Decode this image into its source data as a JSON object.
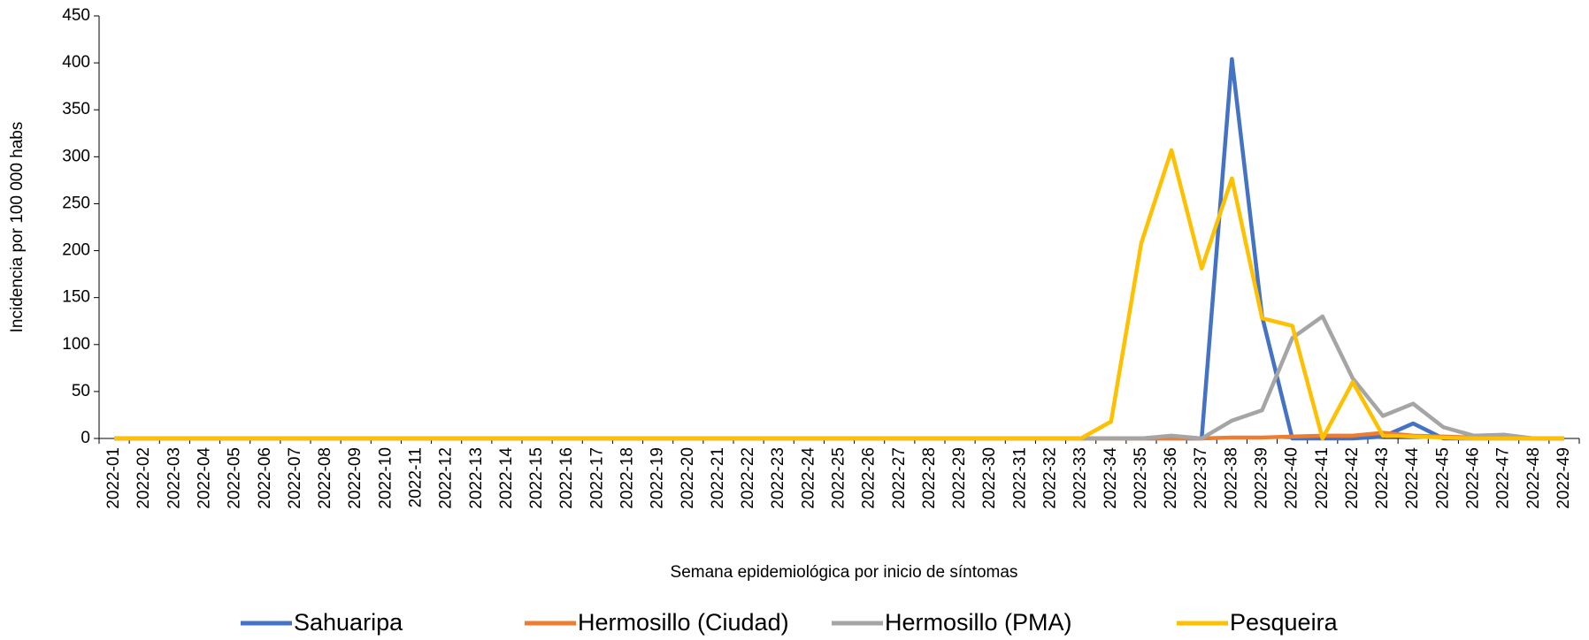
{
  "chart_data": {
    "type": "line",
    "x_label": "Semana epidemiológica por inicio de síntomas",
    "y_label": "Incidencia por 100 000 habs",
    "categories": [
      "2022-01",
      "2022-02",
      "2022-03",
      "2022-04",
      "2022-05",
      "2022-06",
      "2022-07",
      "2022-08",
      "2022-09",
      "2022-10",
      "2022-11",
      "2022-12",
      "2022-13",
      "2022-14",
      "2022-15",
      "2022-16",
      "2022-17",
      "2022-18",
      "2022-19",
      "2022-20",
      "2022-21",
      "2022-22",
      "2022-23",
      "2022-24",
      "2022-25",
      "2022-26",
      "2022-27",
      "2022-28",
      "2022-29",
      "2022-30",
      "2022-31",
      "2022-32",
      "2022-33",
      "2022-34",
      "2022-35",
      "2022-36",
      "2022-37",
      "2022-38",
      "2022-39",
      "2022-40",
      "2022-41",
      "2022-42",
      "2022-43",
      "2022-44",
      "2022-45",
      "2022-46",
      "2022-47",
      "2022-48",
      "2022-49"
    ],
    "series": [
      {
        "name": "Sahuaripa",
        "color": "#4472c4",
        "values": [
          0,
          0,
          0,
          0,
          0,
          0,
          0,
          0,
          0,
          0,
          0,
          0,
          0,
          0,
          0,
          0,
          0,
          0,
          0,
          0,
          0,
          0,
          0,
          0,
          0,
          0,
          0,
          0,
          0,
          0,
          0,
          0,
          0,
          0,
          0,
          0,
          0,
          404,
          130,
          0,
          0,
          0,
          2,
          16,
          0,
          0,
          0,
          0,
          0
        ]
      },
      {
        "name": "Hermosillo (Ciudad)",
        "color": "#ed7d31",
        "values": [
          0,
          0,
          0,
          0,
          0,
          0,
          0,
          0,
          0,
          0,
          0,
          0,
          0,
          0,
          0,
          0,
          0,
          0,
          0,
          0,
          0,
          0,
          0,
          0,
          0,
          0,
          0,
          0,
          0,
          0,
          0,
          0,
          0,
          0,
          0,
          0,
          0,
          1,
          1,
          2,
          3,
          3,
          6,
          3,
          2,
          1,
          1,
          0,
          0
        ]
      },
      {
        "name": "Hermosillo (PMA)",
        "color": "#a5a5a5",
        "values": [
          0,
          0,
          0,
          0,
          0,
          0,
          0,
          0,
          0,
          0,
          0,
          0,
          0,
          0,
          0,
          0,
          0,
          0,
          0,
          0,
          0,
          0,
          0,
          0,
          0,
          0,
          0,
          0,
          0,
          0,
          0,
          0,
          0,
          0,
          0,
          3,
          0,
          19,
          30,
          107,
          130,
          64,
          24,
          37,
          12,
          3,
          4,
          0,
          0
        ]
      },
      {
        "name": "Pesqueira",
        "color": "#ffc000",
        "values": [
          0,
          0,
          0,
          0,
          0,
          0,
          0,
          0,
          0,
          0,
          0,
          0,
          0,
          0,
          0,
          0,
          0,
          0,
          0,
          0,
          0,
          0,
          0,
          0,
          0,
          0,
          0,
          0,
          0,
          0,
          0,
          0,
          0,
          18,
          208,
          307,
          181,
          277,
          128,
          120,
          0,
          60,
          3,
          2,
          1,
          0,
          0,
          0,
          0
        ]
      }
    ],
    "ylim": [
      0,
      450
    ],
    "yticks": [
      0,
      50,
      100,
      150,
      200,
      250,
      300,
      350,
      400,
      450
    ]
  }
}
